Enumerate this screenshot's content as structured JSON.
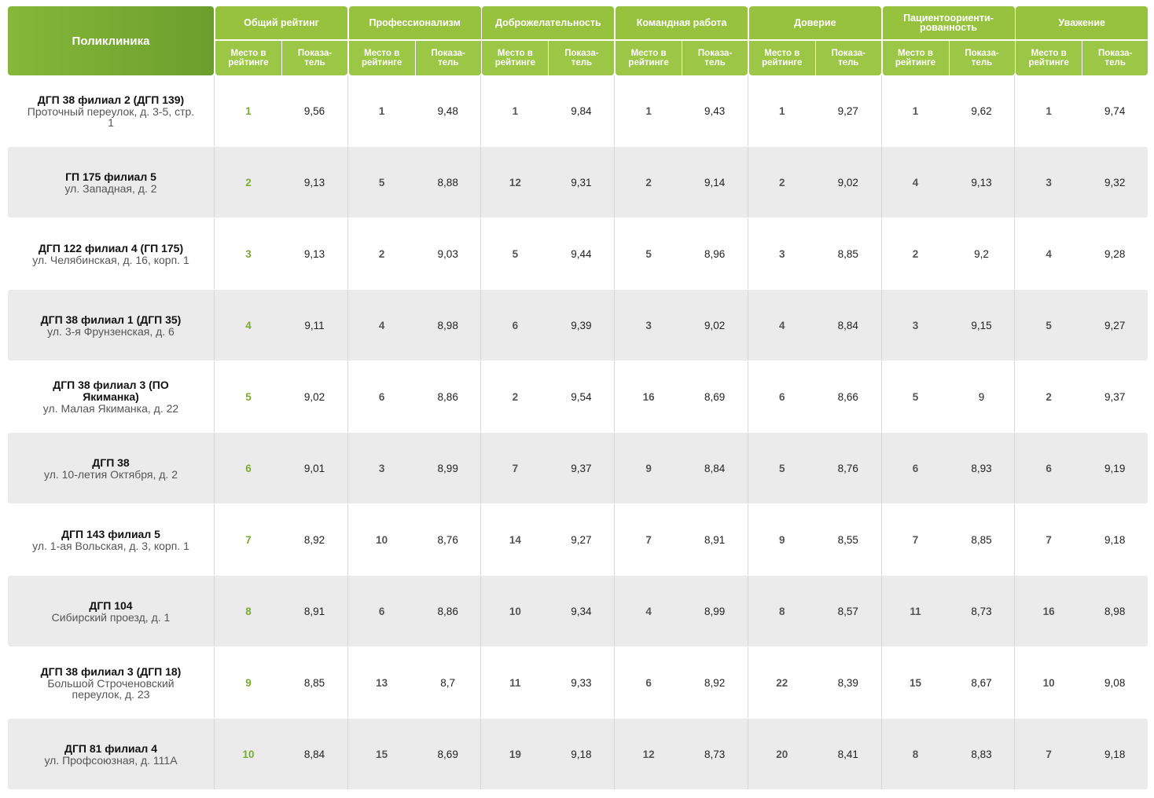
{
  "header": {
    "polyclinic": "Поликлиника",
    "groups": [
      {
        "title": "Общий рейтинг"
      },
      {
        "title": "Профессионализм"
      },
      {
        "title": "Доброжелательность"
      },
      {
        "title": "Командная работа"
      },
      {
        "title": "Доверие"
      },
      {
        "title": "Пациентоориенти-\nрованность"
      },
      {
        "title": "Уважение"
      }
    ],
    "sub_rank": "Место в\nрейтинге",
    "sub_value": "Показа-\nтель"
  },
  "rows": [
    {
      "name": "ДГП 38 филиал 2 (ДГП 139)",
      "address": "Проточный переулок, д. 3-5, стр. 1",
      "cells": [
        [
          "1",
          "9,56"
        ],
        [
          "1",
          "9,48"
        ],
        [
          "1",
          "9,84"
        ],
        [
          "1",
          "9,43"
        ],
        [
          "1",
          "9,27"
        ],
        [
          "1",
          "9,62"
        ],
        [
          "1",
          "9,74"
        ]
      ]
    },
    {
      "name": "ГП 175 филиал 5",
      "address": "ул. Западная, д. 2",
      "cells": [
        [
          "2",
          "9,13"
        ],
        [
          "5",
          "8,88"
        ],
        [
          "12",
          "9,31"
        ],
        [
          "2",
          "9,14"
        ],
        [
          "2",
          "9,02"
        ],
        [
          "4",
          "9,13"
        ],
        [
          "3",
          "9,32"
        ]
      ]
    },
    {
      "name": "ДГП 122 филиал 4 (ГП 175)",
      "address": "ул. Челябинская, д. 16, корп. 1",
      "cells": [
        [
          "3",
          "9,13"
        ],
        [
          "2",
          "9,03"
        ],
        [
          "5",
          "9,44"
        ],
        [
          "5",
          "8,96"
        ],
        [
          "3",
          "8,85"
        ],
        [
          "2",
          "9,2"
        ],
        [
          "4",
          "9,28"
        ]
      ]
    },
    {
      "name": "ДГП 38 филиал 1 (ДГП 35)",
      "address": "ул. 3-я Фрунзенская, д. 6",
      "cells": [
        [
          "4",
          "9,11"
        ],
        [
          "4",
          "8,98"
        ],
        [
          "6",
          "9,39"
        ],
        [
          "3",
          "9,02"
        ],
        [
          "4",
          "8,84"
        ],
        [
          "3",
          "9,15"
        ],
        [
          "5",
          "9,27"
        ]
      ]
    },
    {
      "name": "ДГП 38 филиал 3 (ПО Якиманка)",
      "address": "ул. Малая Якиманка, д. 22",
      "cells": [
        [
          "5",
          "9,02"
        ],
        [
          "6",
          "8,86"
        ],
        [
          "2",
          "9,54"
        ],
        [
          "16",
          "8,69"
        ],
        [
          "6",
          "8,66"
        ],
        [
          "5",
          "9"
        ],
        [
          "2",
          "9,37"
        ]
      ]
    },
    {
      "name": "ДГП 38",
      "address": "ул. 10-летия Октября, д. 2",
      "cells": [
        [
          "6",
          "9,01"
        ],
        [
          "3",
          "8,99"
        ],
        [
          "7",
          "9,37"
        ],
        [
          "9",
          "8,84"
        ],
        [
          "5",
          "8,76"
        ],
        [
          "6",
          "8,93"
        ],
        [
          "6",
          "9,19"
        ]
      ]
    },
    {
      "name": "ДГП 143 филиал 5",
      "address": "ул. 1-ая Вольская, д. 3, корп. 1",
      "cells": [
        [
          "7",
          "8,92"
        ],
        [
          "10",
          "8,76"
        ],
        [
          "14",
          "9,27"
        ],
        [
          "7",
          "8,91"
        ],
        [
          "9",
          "8,55"
        ],
        [
          "7",
          "8,85"
        ],
        [
          "7",
          "9,18"
        ]
      ]
    },
    {
      "name": "ДГП 104",
      "address": "Сибирский проезд, д. 1",
      "cells": [
        [
          "8",
          "8,91"
        ],
        [
          "6",
          "8,86"
        ],
        [
          "10",
          "9,34"
        ],
        [
          "4",
          "8,99"
        ],
        [
          "8",
          "8,57"
        ],
        [
          "11",
          "8,73"
        ],
        [
          "16",
          "8,98"
        ]
      ]
    },
    {
      "name": "ДГП 38 филиал 3 (ДГП 18)",
      "address": "Большой Строченовский переулок, д. 23",
      "cells": [
        [
          "9",
          "8,85"
        ],
        [
          "13",
          "8,7"
        ],
        [
          "11",
          "9,33"
        ],
        [
          "6",
          "8,92"
        ],
        [
          "22",
          "8,39"
        ],
        [
          "15",
          "8,67"
        ],
        [
          "10",
          "9,08"
        ]
      ]
    },
    {
      "name": "ДГП 81 филиал 4",
      "address": "ул. Профсоюзная, д. 111А",
      "cells": [
        [
          "10",
          "8,84"
        ],
        [
          "15",
          "8,69"
        ],
        [
          "19",
          "9,18"
        ],
        [
          "12",
          "8,73"
        ],
        [
          "20",
          "8,41"
        ],
        [
          "8",
          "8,83"
        ],
        [
          "7",
          "9,18"
        ]
      ]
    }
  ]
}
